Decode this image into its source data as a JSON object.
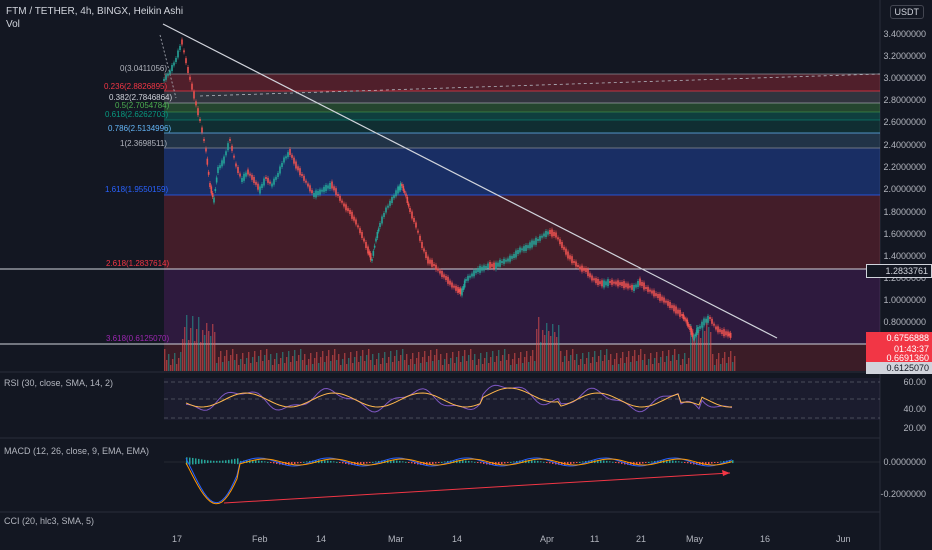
{
  "header": {
    "title": "FTM / TETHER, 4h, BINGX, Heikin Ashi",
    "volume_label": "Vol"
  },
  "currency_button": "USDT",
  "price_axis": {
    "ticks": [
      "3.4000000",
      "3.2000000",
      "3.0000000",
      "2.8000000",
      "2.6000000",
      "2.4000000",
      "2.2000000",
      "2.0000000",
      "1.8000000",
      "1.6000000",
      "1.4000000",
      "1.2000000",
      "1.0000000",
      "0.8000000"
    ]
  },
  "price_tags": {
    "line_level": "1.2833761",
    "current_price": "0.6756888",
    "countdown": "01:43:37",
    "second_price": "0.6691360",
    "fib_low": "0.6125070"
  },
  "fib_levels": [
    {
      "text": "0(3.0411056)",
      "color": "#b2b5be"
    },
    {
      "text": "0.236(2.8826895)",
      "color": "#f23645"
    },
    {
      "text": "0.382(2.7846864)",
      "color": "#d1d4dc"
    },
    {
      "text": "0.5(2.7054784)",
      "color": "#4caf50"
    },
    {
      "text": "0.618(2.6262703)",
      "color": "#089981"
    },
    {
      "text": "0.786(2.5134996)",
      "color": "#64b5f6"
    },
    {
      "text": "1(2.3698511)",
      "color": "#b2b5be"
    },
    {
      "text": "1.618(1.9550159)",
      "color": "#2962ff"
    },
    {
      "text": "2.618(1.2837614)",
      "color": "#f23645"
    },
    {
      "text": "3.618(0.6125070)",
      "color": "#9c27b0"
    }
  ],
  "indicators": {
    "rsi": {
      "label": "RSI (30, close, SMA, 14, 2)",
      "ticks": [
        "60.00",
        "40.00",
        "20.00"
      ]
    },
    "macd": {
      "label": "MACD (12, 26, close, 9, EMA, EMA)",
      "ticks": [
        "0.0000000",
        "-0.2000000"
      ]
    },
    "cci": {
      "label": "CCI (20, hlc3, SMA, 5)"
    }
  },
  "time_axis": {
    "labels": [
      "17",
      "Feb",
      "14",
      "Mar",
      "14",
      "Apr",
      "11",
      "21",
      "May",
      "16",
      "Jun"
    ]
  },
  "colors": {
    "up": "#26a69a",
    "down": "#ef5350",
    "rsi_line": "#7e57c2",
    "signal_line": "#ffb74d",
    "trendline": "#d1d4dc"
  },
  "chart_data": {
    "type": "line",
    "title": "FTM / TETHER, 4h, BINGX, Heikin Ashi",
    "x": [
      "Jan 17",
      "Feb",
      "Feb 14",
      "Mar",
      "Mar 14",
      "Apr",
      "Apr 11",
      "Apr 21",
      "May",
      "May 16",
      "Jun"
    ],
    "series": [
      {
        "name": "FTM / TETHER",
        "values": [
          3.3,
          2.1,
          2.2,
          1.9,
          1.15,
          1.65,
          1.3,
          1.2,
          0.78,
          null,
          null
        ]
      }
    ],
    "ylim": [
      0.6,
      3.5
    ]
  }
}
